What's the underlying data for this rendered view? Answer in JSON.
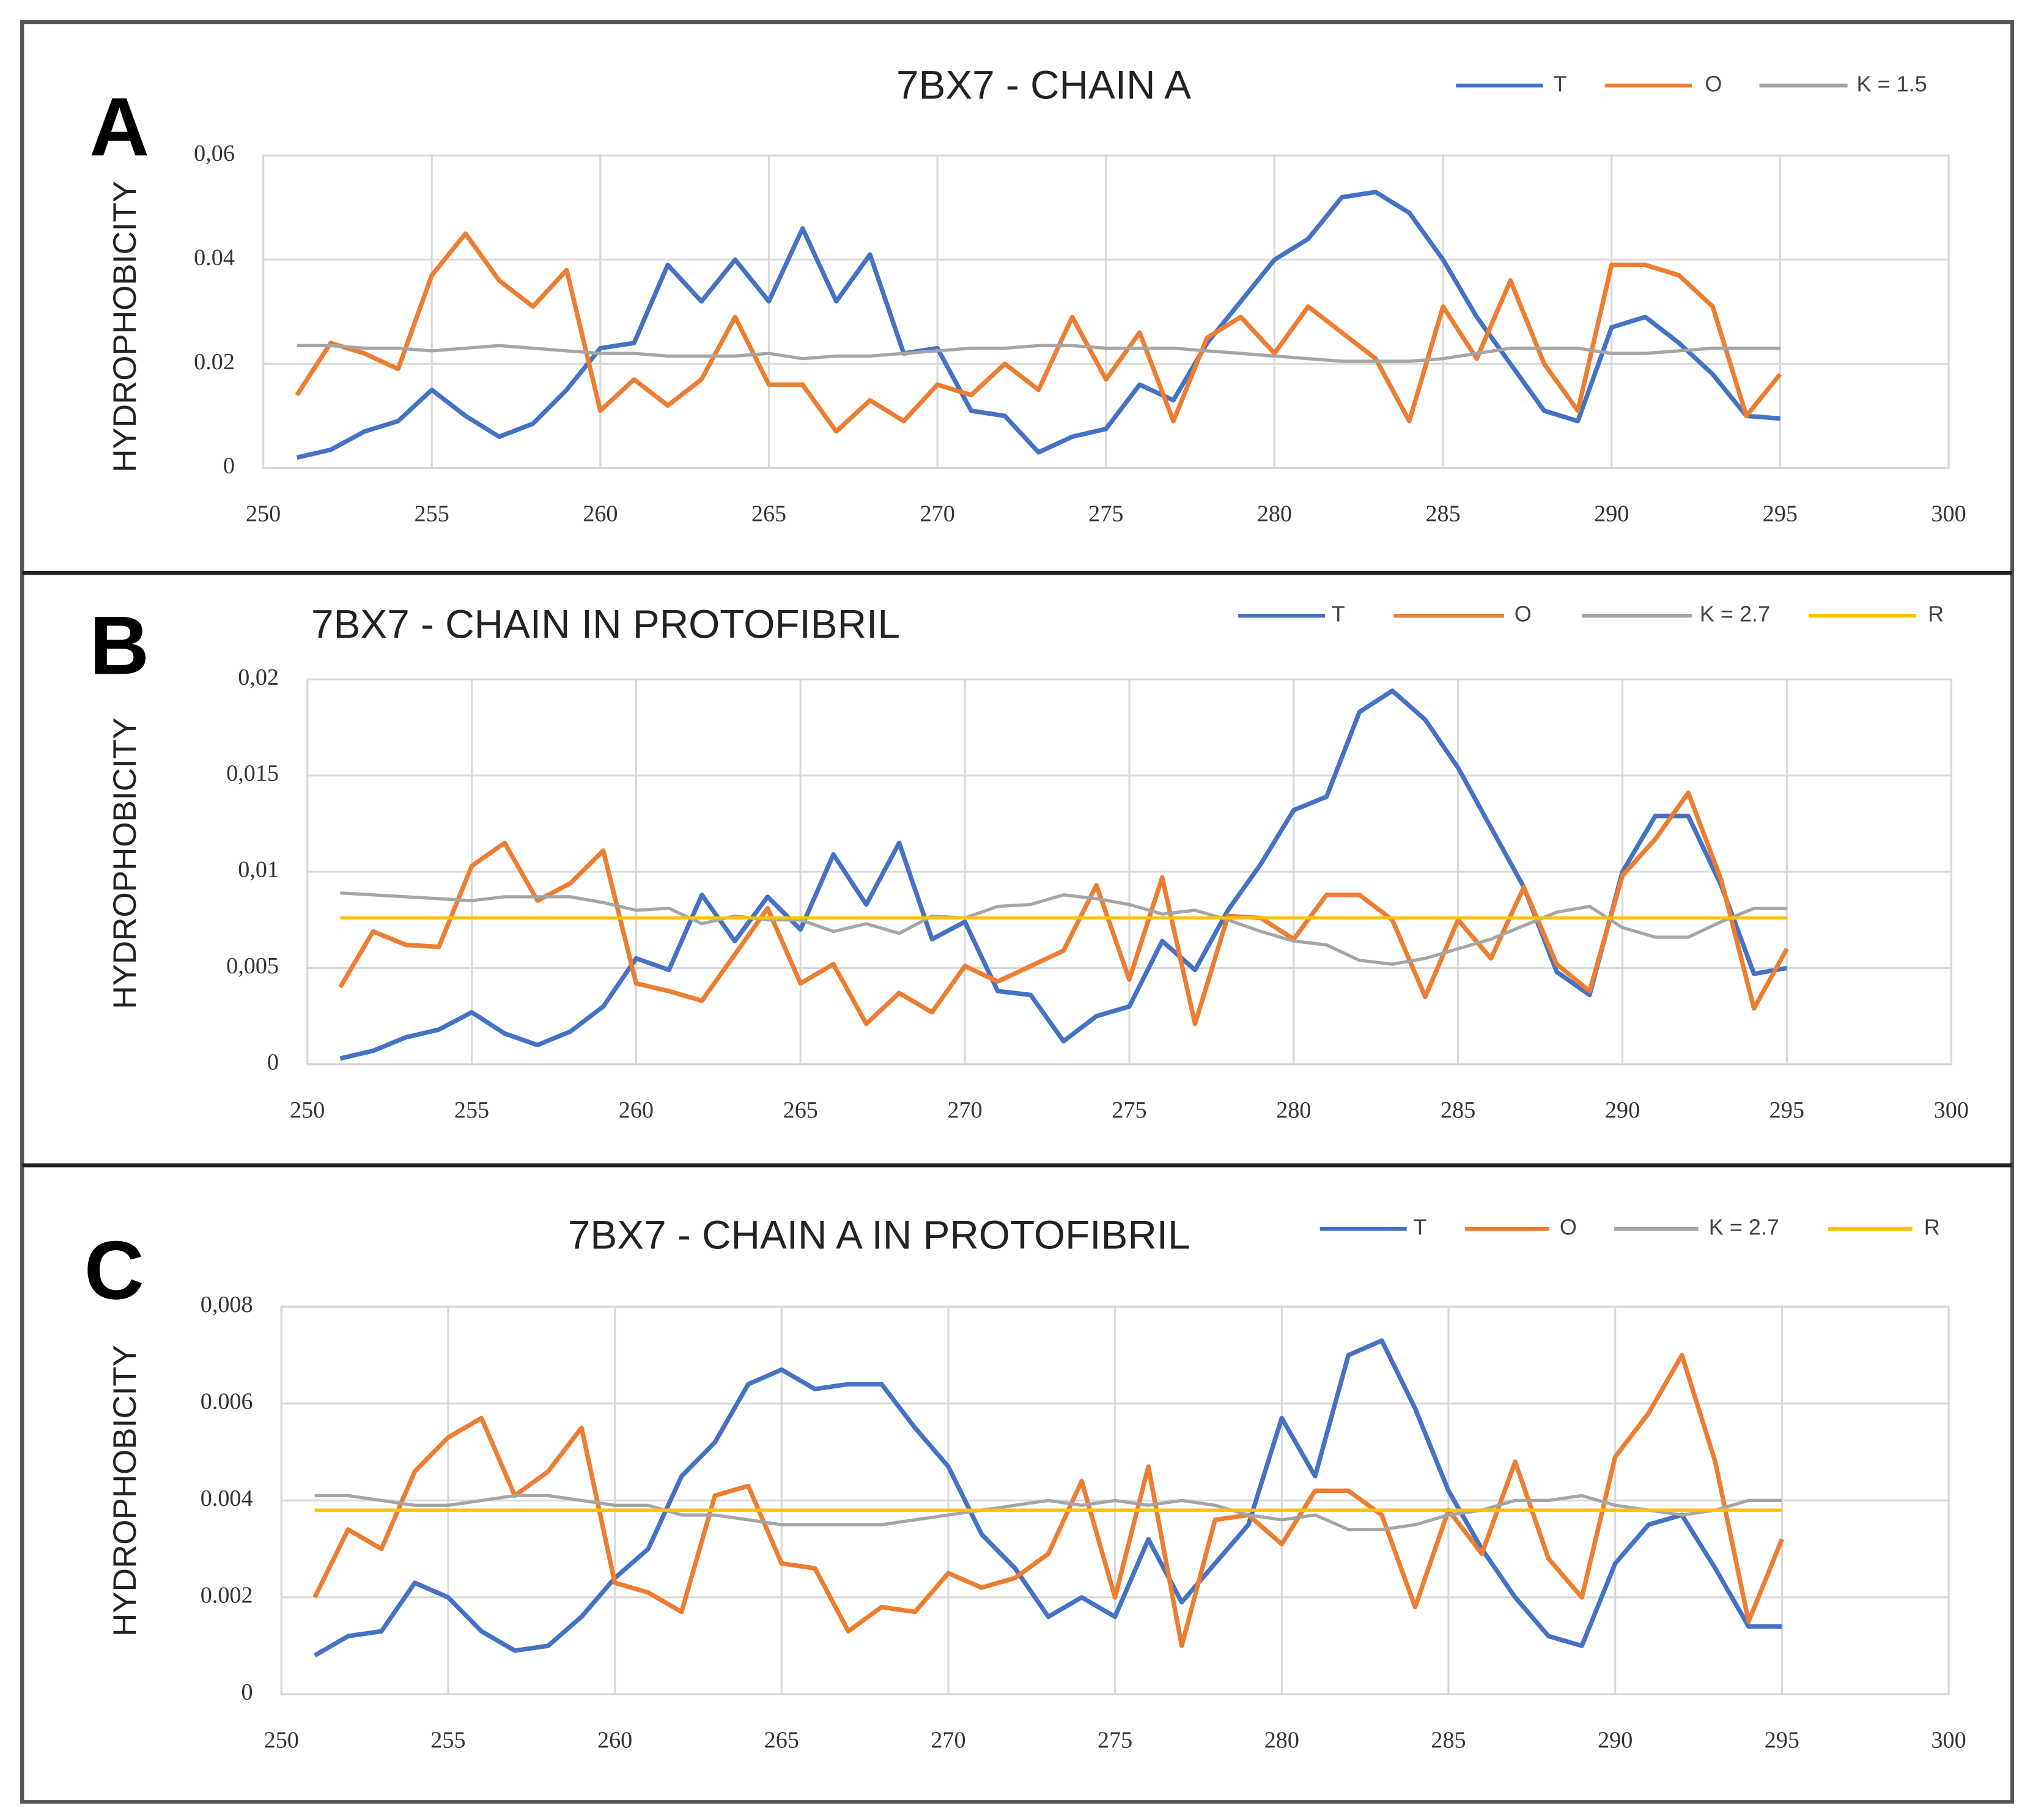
{
  "chart_data": [
    {
      "type": "line",
      "panel": "A",
      "title": "7BX7 - CHAIN A",
      "ylabel": "HYDROPHOBICITY",
      "x": [
        251,
        252,
        253,
        254,
        255,
        256,
        257,
        258,
        259,
        260,
        261,
        262,
        263,
        264,
        265,
        266,
        267,
        268,
        269,
        270,
        271,
        272,
        273,
        274,
        275,
        276,
        277,
        278,
        279,
        280,
        281,
        282,
        283,
        284,
        285,
        286,
        287,
        288,
        289,
        290,
        291,
        292,
        293,
        294,
        295
      ],
      "xlim": [
        250,
        300
      ],
      "xticks": [
        250,
        255,
        260,
        265,
        270,
        275,
        280,
        285,
        290,
        295,
        300
      ],
      "ylim": [
        0,
        0.06
      ],
      "yticks": [
        0,
        0.02,
        0.04,
        {
          "value": 0.06,
          "label": "0,06"
        }
      ],
      "grid": true,
      "series": [
        {
          "name": "T",
          "color": "#4472c4",
          "values": [
            0.002,
            0.0035,
            0.007,
            0.009,
            0.015,
            0.01,
            0.006,
            0.0085,
            0.015,
            0.023,
            0.024,
            0.039,
            0.032,
            0.04,
            0.032,
            0.046,
            0.032,
            0.041,
            0.022,
            0.023,
            0.011,
            0.01,
            0.003,
            0.006,
            0.0075,
            0.016,
            0.013,
            0.024,
            0.032,
            0.04,
            0.044,
            0.052,
            0.053,
            0.049,
            0.04,
            0.029,
            0.02,
            0.011,
            0.009,
            0.027,
            0.029,
            0.024,
            0.018,
            0.01,
            0.0095
          ]
        },
        {
          "name": "O",
          "color": "#ed7d31",
          "values": [
            0.014,
            0.024,
            0.022,
            0.019,
            0.037,
            0.045,
            0.036,
            0.031,
            0.038,
            0.011,
            0.017,
            0.012,
            0.017,
            0.029,
            0.016,
            0.016,
            0.007,
            0.013,
            0.009,
            0.016,
            0.014,
            0.02,
            0.015,
            0.029,
            0.017,
            0.026,
            0.009,
            0.025,
            0.029,
            0.022,
            0.031,
            0.026,
            0.021,
            0.009,
            0.031,
            0.021,
            0.036,
            0.02,
            0.011,
            0.039,
            0.039,
            0.037,
            0.031,
            0.01,
            0.018
          ]
        },
        {
          "name": "K = 1.5",
          "color": "#a5a5a5",
          "values": [
            0.0235,
            0.0235,
            0.023,
            0.023,
            0.0225,
            0.023,
            0.0235,
            0.023,
            0.0225,
            0.022,
            0.022,
            0.0215,
            0.0215,
            0.0215,
            0.022,
            0.021,
            0.0215,
            0.0215,
            0.022,
            0.0225,
            0.023,
            0.023,
            0.0235,
            0.0235,
            0.023,
            0.023,
            0.023,
            0.0225,
            0.022,
            0.0215,
            0.021,
            0.0205,
            0.0205,
            0.0205,
            0.021,
            0.022,
            0.023,
            0.023,
            0.023,
            0.022,
            0.022,
            0.0225,
            0.023,
            0.023,
            0.023
          ]
        }
      ]
    },
    {
      "type": "line",
      "panel": "B",
      "title": "7BX7 - CHAIN IN PROTOFIBRIL",
      "ylabel": "HYDROPHOBICITY",
      "x": [
        251,
        252,
        253,
        254,
        255,
        256,
        257,
        258,
        259,
        260,
        261,
        262,
        263,
        264,
        265,
        266,
        267,
        268,
        269,
        270,
        271,
        272,
        273,
        274,
        275,
        276,
        277,
        278,
        279,
        280,
        281,
        282,
        283,
        284,
        285,
        286,
        287,
        288,
        289,
        290,
        291,
        292,
        293,
        294,
        295
      ],
      "xlim": [
        250,
        300
      ],
      "xticks": [
        250,
        255,
        260,
        265,
        270,
        275,
        280,
        285,
        290,
        295,
        300
      ],
      "ylim": [
        0,
        0.02
      ],
      "yticks": [
        0,
        {
          "value": 0.005,
          "label": "0,005"
        },
        {
          "value": 0.01,
          "label": "0,01"
        },
        {
          "value": 0.015,
          "label": "0,015"
        },
        {
          "value": 0.02,
          "label": "0,02"
        }
      ],
      "grid": true,
      "series": [
        {
          "name": "T",
          "color": "#4472c4",
          "values": [
            0.0003,
            0.0007,
            0.0014,
            0.0018,
            0.0027,
            0.0016,
            0.001,
            0.0017,
            0.003,
            0.0055,
            0.0049,
            0.0088,
            0.0064,
            0.0087,
            0.007,
            0.0109,
            0.0083,
            0.0115,
            0.0065,
            0.0074,
            0.0038,
            0.0036,
            0.0012,
            0.0025,
            0.003,
            0.0064,
            0.0049,
            0.008,
            0.0104,
            0.0132,
            0.0139,
            0.0183,
            0.0194,
            0.0179,
            0.0154,
            0.0123,
            0.0092,
            0.0048,
            0.0036,
            0.01,
            0.0129,
            0.0129,
            0.0093,
            0.0047,
            0.005
          ]
        },
        {
          "name": "O",
          "color": "#ed7d31",
          "values": [
            0.004,
            0.0069,
            0.0062,
            0.0061,
            0.0103,
            0.0115,
            0.0085,
            0.0094,
            0.0111,
            0.0042,
            0.0038,
            0.0033,
            0.0057,
            0.0081,
            0.0042,
            0.0052,
            0.0021,
            0.0037,
            0.0027,
            0.0051,
            0.0043,
            0.0051,
            0.0059,
            0.0093,
            0.0044,
            0.0097,
            0.0021,
            0.0077,
            0.0076,
            0.0065,
            0.0088,
            0.0088,
            0.0075,
            0.0035,
            0.0075,
            0.0055,
            0.0092,
            0.0052,
            0.0038,
            0.0098,
            0.0117,
            0.0141,
            0.0096,
            0.0029,
            0.006
          ]
        },
        {
          "name": "K = 2.7",
          "color": "#a5a5a5",
          "values": [
            0.0089,
            0.0088,
            0.0087,
            0.0086,
            0.0085,
            0.0087,
            0.0087,
            0.0087,
            0.0084,
            0.008,
            0.0081,
            0.0073,
            0.0077,
            0.0075,
            0.0075,
            0.0069,
            0.0073,
            0.0068,
            0.0077,
            0.0076,
            0.0082,
            0.0083,
            0.0088,
            0.0086,
            0.0083,
            0.0078,
            0.008,
            0.0075,
            0.0069,
            0.0064,
            0.0062,
            0.0054,
            0.0052,
            0.0055,
            0.006,
            0.0065,
            0.0072,
            0.0079,
            0.0082,
            0.0071,
            0.0066,
            0.0066,
            0.0074,
            0.0081,
            0.0081
          ]
        },
        {
          "name": "R",
          "color": "#ffc000",
          "values": [
            0.0076,
            0.0076,
            0.0076,
            0.0076,
            0.0076,
            0.0076,
            0.0076,
            0.0076,
            0.0076,
            0.0076,
            0.0076,
            0.0076,
            0.0076,
            0.0076,
            0.0076,
            0.0076,
            0.0076,
            0.0076,
            0.0076,
            0.0076,
            0.0076,
            0.0076,
            0.0076,
            0.0076,
            0.0076,
            0.0076,
            0.0076,
            0.0076,
            0.0076,
            0.0076,
            0.0076,
            0.0076,
            0.0076,
            0.0076,
            0.0076,
            0.0076,
            0.0076,
            0.0076,
            0.0076,
            0.0076,
            0.0076,
            0.0076,
            0.0076,
            0.0076,
            0.0076
          ]
        }
      ]
    },
    {
      "type": "line",
      "panel": "C",
      "title": "7BX7 - CHAIN A IN PROTOFIBRIL",
      "ylabel": "HYDROPHOBICITY",
      "x": [
        251,
        252,
        253,
        254,
        255,
        256,
        257,
        258,
        259,
        260,
        261,
        262,
        263,
        264,
        265,
        266,
        267,
        268,
        269,
        270,
        271,
        272,
        273,
        274,
        275,
        276,
        277,
        278,
        279,
        280,
        281,
        282,
        283,
        284,
        285,
        286,
        287,
        288,
        289,
        290,
        291,
        292,
        293,
        294,
        295
      ],
      "xlim": [
        250,
        300
      ],
      "xticks": [
        250,
        255,
        260,
        265,
        270,
        275,
        280,
        285,
        290,
        295,
        300
      ],
      "ylim": [
        0,
        0.008
      ],
      "yticks": [
        0,
        0.002,
        0.004,
        0.006,
        {
          "value": 0.008,
          "label": "0,008"
        }
      ],
      "grid": true,
      "series": [
        {
          "name": "T",
          "color": "#4472c4",
          "values": [
            0.0008,
            0.0012,
            0.0013,
            0.0023,
            0.002,
            0.0013,
            0.0009,
            0.001,
            0.0016,
            0.0024,
            0.003,
            0.0045,
            0.0052,
            0.0064,
            0.0067,
            0.0063,
            0.0064,
            0.0064,
            0.0055,
            0.0047,
            0.0033,
            0.0026,
            0.0016,
            0.002,
            0.0016,
            0.0032,
            0.0019,
            0.0027,
            0.0035,
            0.0057,
            0.0045,
            0.007,
            0.0073,
            0.0059,
            0.0042,
            0.003,
            0.002,
            0.0012,
            0.001,
            0.0027,
            0.0035,
            0.0037,
            0.0026,
            0.0014,
            0.0014
          ]
        },
        {
          "name": "O",
          "color": "#ed7d31",
          "values": [
            0.002,
            0.0034,
            0.003,
            0.0046,
            0.0053,
            0.0057,
            0.0041,
            0.0046,
            0.0055,
            0.0023,
            0.0021,
            0.0017,
            0.0041,
            0.0043,
            0.0027,
            0.0026,
            0.0013,
            0.0018,
            0.0017,
            0.0025,
            0.0022,
            0.0024,
            0.0029,
            0.0044,
            0.002,
            0.0047,
            0.001,
            0.0036,
            0.0037,
            0.0031,
            0.0042,
            0.0042,
            0.0037,
            0.0018,
            0.0038,
            0.0029,
            0.0048,
            0.0028,
            0.002,
            0.0049,
            0.0058,
            0.007,
            0.0048,
            0.0015,
            0.0032
          ]
        },
        {
          "name": "K = 2.7",
          "color": "#a5a5a5",
          "values": [
            0.0041,
            0.0041,
            0.004,
            0.0039,
            0.0039,
            0.004,
            0.0041,
            0.0041,
            0.004,
            0.0039,
            0.0039,
            0.0037,
            0.0037,
            0.0036,
            0.0035,
            0.0035,
            0.0035,
            0.0035,
            0.0036,
            0.0037,
            0.0038,
            0.0039,
            0.004,
            0.0039,
            0.004,
            0.0039,
            0.004,
            0.0039,
            0.0037,
            0.0036,
            0.0037,
            0.0034,
            0.0034,
            0.0035,
            0.0037,
            0.0038,
            0.004,
            0.004,
            0.0041,
            0.0039,
            0.0038,
            0.0037,
            0.0038,
            0.004,
            0.004
          ]
        },
        {
          "name": "R",
          "color": "#ffc000",
          "values": [
            0.0038,
            0.0038,
            0.0038,
            0.0038,
            0.0038,
            0.0038,
            0.0038,
            0.0038,
            0.0038,
            0.0038,
            0.0038,
            0.0038,
            0.0038,
            0.0038,
            0.0038,
            0.0038,
            0.0038,
            0.0038,
            0.0038,
            0.0038,
            0.0038,
            0.0038,
            0.0038,
            0.0038,
            0.0038,
            0.0038,
            0.0038,
            0.0038,
            0.0038,
            0.0038,
            0.0038,
            0.0038,
            0.0038,
            0.0038,
            0.0038,
            0.0038,
            0.0038,
            0.0038,
            0.0038,
            0.0038,
            0.0038,
            0.0038,
            0.0038,
            0.0038,
            0.0038
          ]
        }
      ]
    }
  ]
}
